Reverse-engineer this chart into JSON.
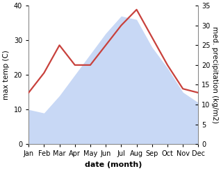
{
  "months": [
    "Jan",
    "Feb",
    "Mar",
    "Apr",
    "May",
    "Jun",
    "Jul",
    "Aug",
    "Sep",
    "Oct",
    "Nov",
    "Dec"
  ],
  "max_temp": [
    10,
    9,
    14,
    20,
    26,
    32,
    37,
    36,
    28,
    22,
    15,
    12
  ],
  "precipitation": [
    13,
    18,
    25,
    20,
    20,
    25,
    30,
    34,
    27,
    20,
    14,
    13
  ],
  "precip_color": "#c8413c",
  "temp_ylim": [
    0,
    40
  ],
  "precip_ylim": [
    0,
    35
  ],
  "temp_yticks": [
    0,
    10,
    20,
    30,
    40
  ],
  "precip_yticks": [
    0,
    5,
    10,
    15,
    20,
    25,
    30,
    35
  ],
  "xlabel": "date (month)",
  "ylabel_left": "max temp (C)",
  "ylabel_right": "med. precipitation (kg/m2)",
  "background_color": "#ffffff",
  "fill_color": "#c8d8f5",
  "fill_alpha": 1.0,
  "tick_labelsize": 7,
  "ylabel_fontsize": 7.5,
  "xlabel_fontsize": 8,
  "precip_linewidth": 1.6
}
